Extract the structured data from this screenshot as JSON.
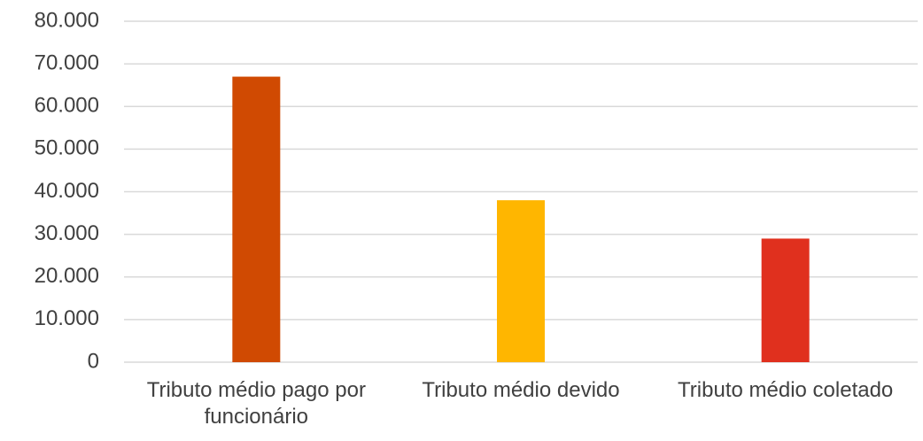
{
  "chart_data": {
    "type": "bar",
    "categories": [
      "Tributo médio pago por funcionário",
      "Tributo médio devido",
      "Tributo médio coletado"
    ],
    "values": [
      67000,
      38000,
      29000
    ],
    "colors": [
      "#d04a02",
      "#ffb600",
      "#e0301e"
    ],
    "ylim": [
      0,
      80000
    ],
    "yticks": [
      0,
      {
        "value": 10000,
        "label": "10.000"
      },
      {
        "value": 20000,
        "label": "20.000"
      },
      {
        "value": 30000,
        "label": "30.000"
      },
      {
        "value": 40000,
        "label": "40.000"
      },
      {
        "value": 50000,
        "label": "50.000"
      },
      {
        "value": 60000,
        "label": "60.000"
      },
      {
        "value": 70000,
        "label": "70.000"
      },
      {
        "value": 80000,
        "label": "80.000"
      }
    ],
    "grid": true
  }
}
